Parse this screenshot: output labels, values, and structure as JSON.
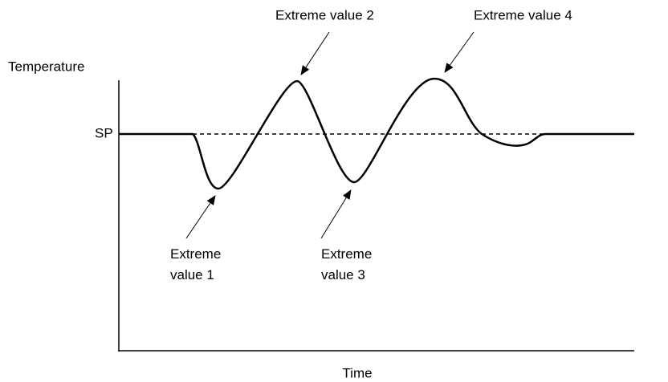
{
  "axes": {
    "y_label": "Temperature",
    "x_label": "Time",
    "setpoint_label": "SP"
  },
  "annotations": [
    {
      "lines": [
        "Extreme value 1"
      ]
    },
    {
      "lines": [
        "Extreme value 2"
      ]
    },
    {
      "lines": [
        "Extreme value 3"
      ]
    },
    {
      "lines": [
        "Extreme value 4"
      ]
    }
  ]
}
